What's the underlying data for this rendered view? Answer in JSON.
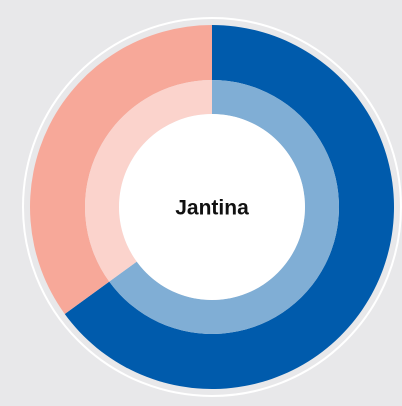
{
  "chart_data": {
    "type": "donut",
    "center_label": "Jantina",
    "values": [
      65,
      35
    ],
    "colors": [
      "#005bac",
      "#f7a899"
    ],
    "inner_colors": [
      "#80aed5",
      "#fbd3cc"
    ]
  }
}
